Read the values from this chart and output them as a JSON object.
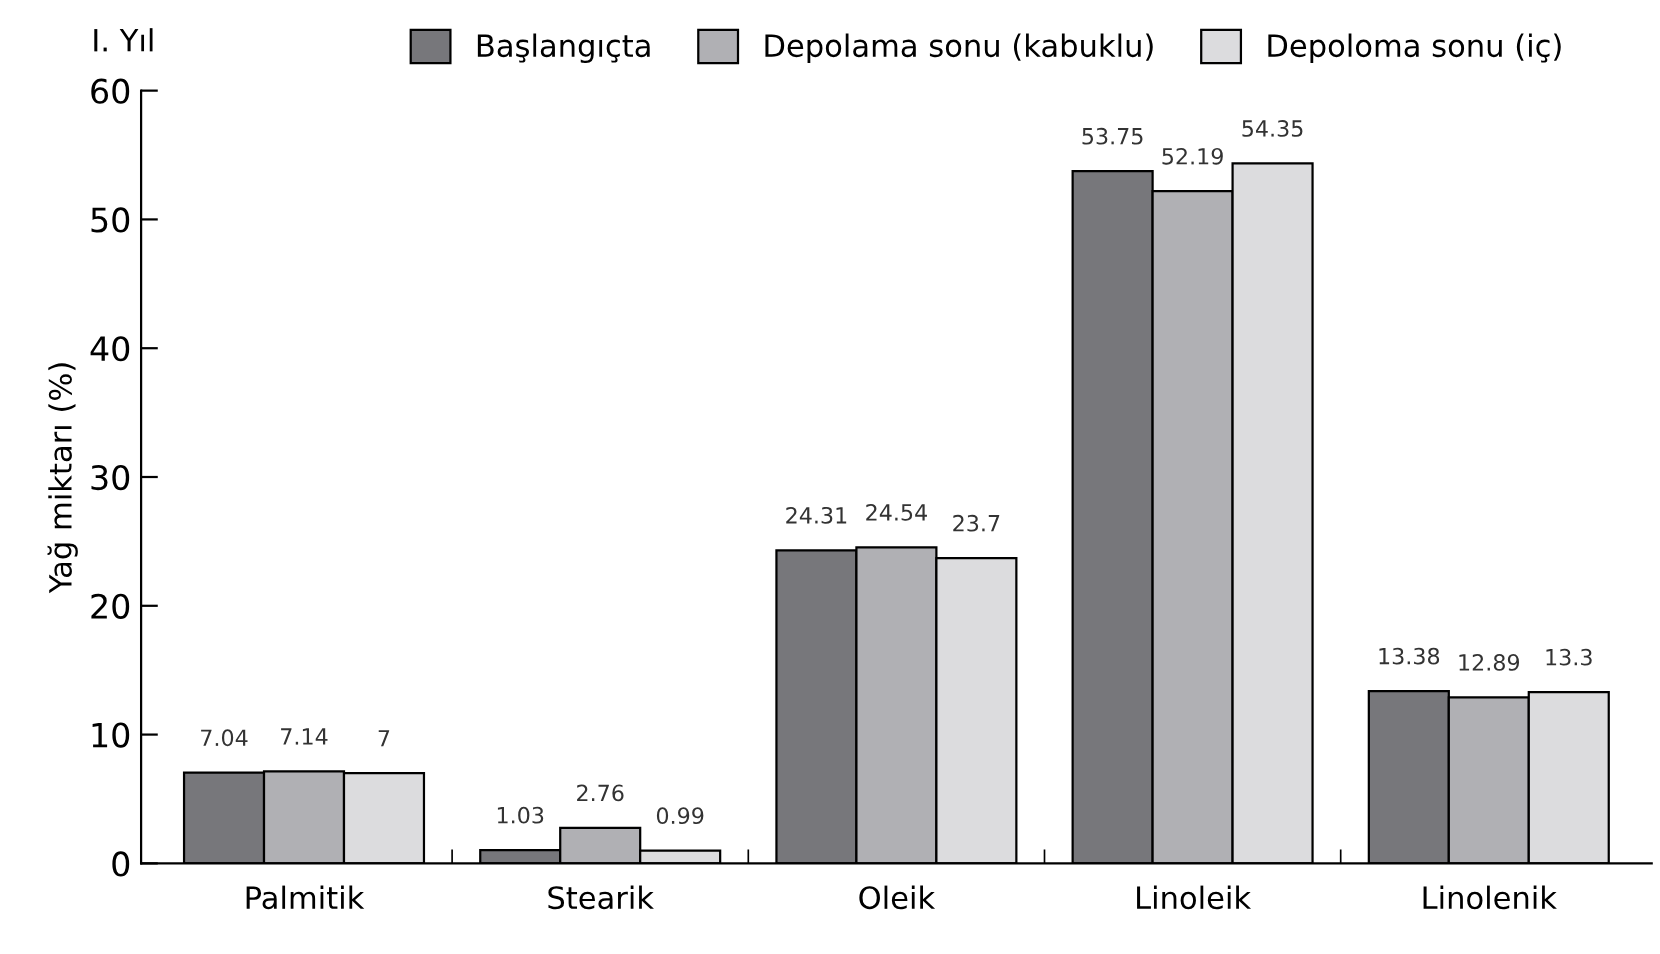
{
  "chart_data": {
    "type": "bar",
    "ylabel": "Yağ miktarı (%)",
    "legend_title": "I. Yıl",
    "legend": "top",
    "categories": [
      "Palmitik",
      "Stearik",
      "Oleik",
      "Linoleik",
      "Linolenik"
    ],
    "series": [
      {
        "name": "Başlangıçta",
        "color": "#77777b",
        "values": [
          7.04,
          1.03,
          24.31,
          53.75,
          13.38
        ]
      },
      {
        "name": "Depolama sonu (kabuklu)",
        "color": "#b0b0b4",
        "values": [
          7.14,
          2.76,
          24.54,
          52.19,
          12.89
        ]
      },
      {
        "name": "Depoloma sonu (iç)",
        "color": "#dcdcde",
        "values": [
          7,
          0.99,
          23.7,
          54.35,
          13.3
        ]
      }
    ],
    "ylim": [
      0,
      60
    ],
    "yticks": [
      0,
      10,
      20,
      30,
      40,
      50,
      60
    ],
    "data_labels": true,
    "grid": false
  }
}
